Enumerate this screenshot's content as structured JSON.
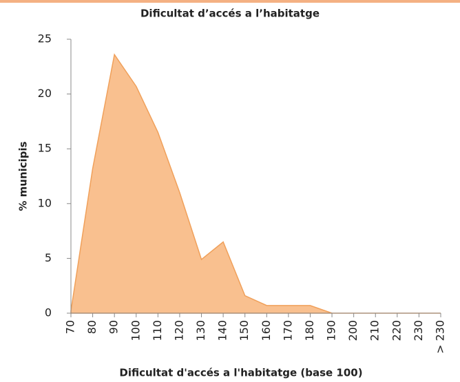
{
  "chart_data": {
    "type": "area",
    "title": "Dificultat d’accés a l’habitatge",
    "x_label": "Dificultat d'accés a l'habitatge (base 100)",
    "y_label": "% municipis",
    "categories": [
      "70",
      "80",
      "90",
      "100",
      "110",
      "120",
      "130",
      "140",
      "150",
      "160",
      "170",
      "180",
      "190",
      "200",
      "210",
      "220",
      "230",
      "> 230"
    ],
    "series": [
      {
        "name": "% municipis",
        "color": "#f9c08f",
        "values": [
          0.2,
          13.2,
          23.6,
          20.7,
          16.5,
          11.0,
          4.9,
          6.5,
          1.6,
          0.7,
          0.7,
          0.7,
          0,
          0,
          0,
          0,
          0,
          0
        ]
      }
    ],
    "ylim": [
      0,
      25
    ],
    "yticks": [
      0,
      5,
      10,
      15,
      20,
      25
    ]
  }
}
